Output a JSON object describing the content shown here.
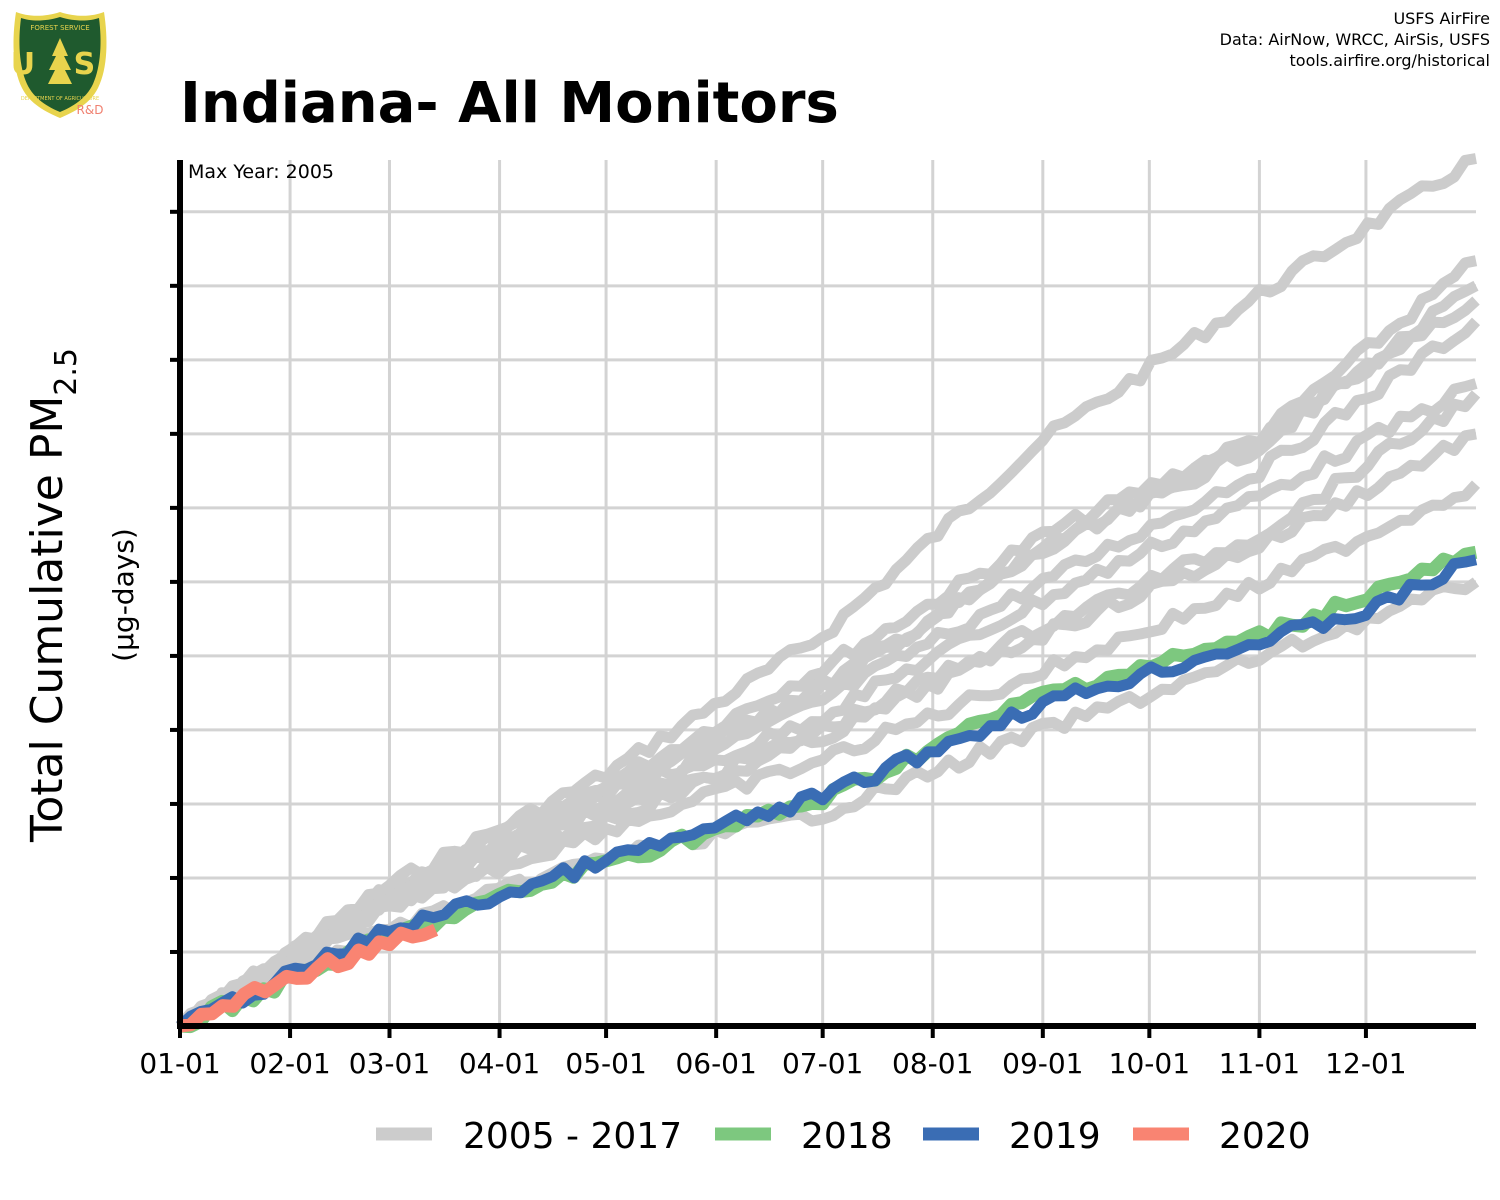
{
  "logo": {
    "top_text": "FOREST SERVICE",
    "letters": "U S",
    "bottom_text": "DEPARTMENT OF AGRICULTURE",
    "badge": "R&D",
    "colors": {
      "shield": "#1f5a2e",
      "rim": "#e8d44d",
      "badge": "#f08070"
    }
  },
  "credits": [
    "USFS AirFire",
    "Data: AirNow, WRCC, AirSis, USFS",
    "tools.airfire.org/historical"
  ],
  "title": "Indiana- All Monitors",
  "chart_data": {
    "type": "line",
    "annotation": "Max Year: 2005",
    "ylabel_main": "Total Cumulative PM",
    "ylabel_sub": "2.5",
    "ylabel_units": "(µg-days)",
    "x_tick_labels": [
      "01-01",
      "02-01",
      "03-01",
      "04-01",
      "05-01",
      "06-01",
      "07-01",
      "08-01",
      "09-01",
      "10-01",
      "11-01",
      "12-01"
    ],
    "x_tick_days": [
      0,
      31,
      59,
      90,
      120,
      151,
      181,
      212,
      243,
      273,
      304,
      334
    ],
    "xlim": [
      0,
      365
    ],
    "ylim": [
      0,
      5850
    ],
    "y_grid": [
      500,
      1000,
      1500,
      2000,
      2500,
      3000,
      3500,
      4000,
      4500,
      5000,
      5500
    ],
    "grid": true,
    "legend_position": "bottom",
    "colors": {
      "historical": "#cccccc",
      "2018": "#7dc87f",
      "2019": "#3a6db4",
      "2020": "#f98472"
    },
    "legend": [
      {
        "label": "2005 - 2017",
        "color": "#cccccc"
      },
      {
        "label": "2018",
        "color": "#7dc87f"
      },
      {
        "label": "2019",
        "color": "#3a6db4"
      },
      {
        "label": "2020",
        "color": "#f98472"
      }
    ],
    "series": [
      {
        "group": "historical",
        "x": [
          0,
          59,
          120,
          181,
          243,
          304,
          365
        ],
        "y": [
          0,
          950,
          1700,
          2640,
          3960,
          4940,
          5860
        ]
      },
      {
        "group": "historical",
        "x": [
          0,
          59,
          120,
          181,
          243,
          304,
          365
        ],
        "y": [
          0,
          920,
          1630,
          2420,
          3310,
          3980,
          5170
        ]
      },
      {
        "group": "historical",
        "x": [
          0,
          59,
          120,
          181,
          243,
          304,
          365
        ],
        "y": [
          0,
          900,
          1600,
          2300,
          3200,
          3920,
          5000
        ]
      },
      {
        "group": "historical",
        "x": [
          0,
          59,
          120,
          181,
          243,
          304,
          365
        ],
        "y": [
          0,
          880,
          1560,
          2280,
          3220,
          3950,
          4900
        ]
      },
      {
        "group": "historical",
        "x": [
          0,
          59,
          120,
          181,
          243,
          304,
          365
        ],
        "y": [
          0,
          860,
          1520,
          2200,
          3000,
          3750,
          4760
        ]
      },
      {
        "group": "historical",
        "x": [
          0,
          59,
          120,
          181,
          243,
          304,
          365
        ],
        "y": [
          0,
          850,
          1480,
          2100,
          2880,
          3580,
          4340
        ]
      },
      {
        "group": "historical",
        "x": [
          0,
          59,
          120,
          181,
          243,
          304,
          365
        ],
        "y": [
          0,
          830,
          1420,
          2000,
          2700,
          3320,
          4270
        ]
      },
      {
        "group": "historical",
        "x": [
          0,
          59,
          120,
          181,
          243,
          304,
          365
        ],
        "y": [
          0,
          820,
          1400,
          1950,
          2650,
          3250,
          4000
        ]
      },
      {
        "group": "historical",
        "x": [
          0,
          59,
          120,
          181,
          243,
          304,
          365
        ],
        "y": [
          0,
          810,
          1330,
          1800,
          2400,
          2980,
          3660
        ]
      },
      {
        "group": "historical",
        "x": [
          0,
          59,
          120,
          181,
          243,
          304,
          365
        ],
        "y": [
          0,
          660,
          1140,
          1440,
          2000,
          2490,
          3000
        ]
      },
      {
        "name": "2018",
        "group": "2018",
        "x": [
          0,
          59,
          120,
          181,
          243,
          304,
          365
        ],
        "y": [
          0,
          600,
          1110,
          1530,
          2240,
          2630,
          3200
        ]
      },
      {
        "name": "2019",
        "group": "2019",
        "x": [
          0,
          59,
          90,
          120,
          181,
          243,
          304,
          334,
          365
        ],
        "y": [
          0,
          650,
          880,
          1120,
          1550,
          2180,
          2600,
          2800,
          3150
        ]
      },
      {
        "name": "2020",
        "group": "2020",
        "x": [
          0,
          30,
          59,
          72
        ],
        "y": [
          0,
          320,
          560,
          650
        ]
      }
    ]
  }
}
